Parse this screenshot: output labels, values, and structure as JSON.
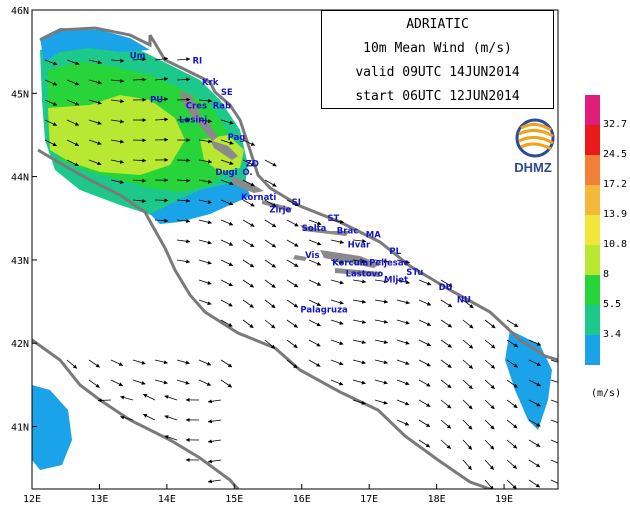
{
  "title": {
    "region": "ADRIATIC",
    "variable": "10m Mean Wind (m/s)",
    "valid": "valid 09UTC 14JUN2014",
    "start": "start 06UTC 12JUN2014"
  },
  "logo": {
    "text": "DHMZ",
    "icon": "dhmz-logo-icon"
  },
  "axes": {
    "lon_range": [
      12.0,
      19.8
    ],
    "lat_range": [
      40.25,
      46.0
    ],
    "x_ticks": [
      "12E",
      "13E",
      "14E",
      "15E",
      "16E",
      "17E",
      "18E",
      "19E"
    ],
    "y_ticks": [
      "46N",
      "45N",
      "44N",
      "43N",
      "42N",
      "41N"
    ]
  },
  "legend": {
    "unit": "(m/s)",
    "bins": [
      {
        "label": "3.4",
        "color": "#1aa3e8"
      },
      {
        "label": "5.5",
        "color": "#1cc98a"
      },
      {
        "label": "8",
        "color": "#27d53a"
      },
      {
        "label": "10.8",
        "color": "#b8e832"
      },
      {
        "label": "13.9",
        "color": "#f0e73a"
      },
      {
        "label": "17.2",
        "color": "#f5b83a"
      },
      {
        "label": "24.5",
        "color": "#f2803a"
      },
      {
        "label": "32.7",
        "color": "#ea1a1a"
      },
      {
        "label": "",
        "color": "#e01e7a"
      }
    ]
  },
  "places": [
    {
      "name": "Um",
      "lon": 13.45,
      "lat": 45.42
    },
    {
      "name": "RI",
      "lon": 14.38,
      "lat": 45.36
    },
    {
      "name": "Krk",
      "lon": 14.52,
      "lat": 45.1
    },
    {
      "name": "SE",
      "lon": 14.8,
      "lat": 44.98
    },
    {
      "name": "PU",
      "lon": 13.75,
      "lat": 44.89
    },
    {
      "name": "Cres",
      "lon": 14.28,
      "lat": 44.82
    },
    {
      "name": "Rab",
      "lon": 14.68,
      "lat": 44.82
    },
    {
      "name": "Losinj",
      "lon": 14.18,
      "lat": 44.65
    },
    {
      "name": "Pag",
      "lon": 14.9,
      "lat": 44.44
    },
    {
      "name": "ZD",
      "lon": 15.17,
      "lat": 44.12
    },
    {
      "name": "Dugi",
      "lon": 14.72,
      "lat": 44.02
    },
    {
      "name": "O.",
      "lon": 15.12,
      "lat": 44.02
    },
    {
      "name": "Kornati",
      "lon": 15.1,
      "lat": 43.72
    },
    {
      "name": "SI",
      "lon": 15.85,
      "lat": 43.66
    },
    {
      "name": "Zirje",
      "lon": 15.52,
      "lat": 43.57
    },
    {
      "name": "ST",
      "lon": 16.38,
      "lat": 43.47
    },
    {
      "name": "Solta",
      "lon": 16.0,
      "lat": 43.35
    },
    {
      "name": "Brac",
      "lon": 16.52,
      "lat": 43.32
    },
    {
      "name": "MA",
      "lon": 16.95,
      "lat": 43.27
    },
    {
      "name": "Hvar",
      "lon": 16.68,
      "lat": 43.15
    },
    {
      "name": "PL",
      "lon": 17.3,
      "lat": 43.07
    },
    {
      "name": "Vis",
      "lon": 16.05,
      "lat": 43.02
    },
    {
      "name": "Korcula",
      "lon": 16.45,
      "lat": 42.93
    },
    {
      "name": "Peljesac",
      "lon": 17.0,
      "lat": 42.93
    },
    {
      "name": "Lastovo",
      "lon": 16.65,
      "lat": 42.8
    },
    {
      "name": "Mljet",
      "lon": 17.22,
      "lat": 42.73
    },
    {
      "name": "STu",
      "lon": 17.55,
      "lat": 42.82
    },
    {
      "name": "DU",
      "lon": 18.03,
      "lat": 42.64
    },
    {
      "name": "NU",
      "lon": 18.3,
      "lat": 42.49
    },
    {
      "name": "Palagruza",
      "lon": 15.98,
      "lat": 42.37
    }
  ]
}
